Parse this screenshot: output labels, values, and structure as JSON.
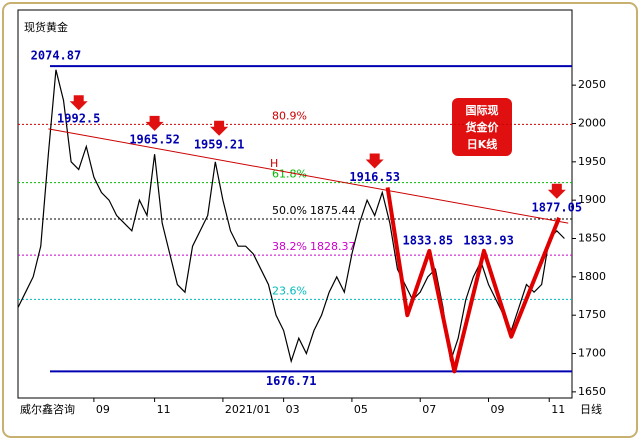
{
  "chart_data": {
    "type": "line",
    "title": "现货黄金",
    "source": "威尔鑫咨询",
    "period_label": "日线",
    "stamp_lines": [
      "国际现",
      "货金价",
      "日K线"
    ],
    "color": "#000000",
    "values": [
      1760,
      1780,
      1800,
      1840,
      1960,
      2070,
      2030,
      1950,
      1940,
      1970,
      1930,
      1910,
      1900,
      1880,
      1870,
      1860,
      1900,
      1880,
      1960,
      1870,
      1830,
      1790,
      1780,
      1840,
      1860,
      1880,
      1950,
      1900,
      1860,
      1840,
      1840,
      1830,
      1810,
      1790,
      1750,
      1730,
      1690,
      1720,
      1700,
      1730,
      1750,
      1780,
      1800,
      1780,
      1830,
      1870,
      1900,
      1880,
      1910,
      1870,
      1810,
      1790,
      1770,
      1780,
      1800,
      1810,
      1760,
      1690,
      1720,
      1770,
      1800,
      1820,
      1790,
      1770,
      1750,
      1730,
      1760,
      1790,
      1780,
      1790,
      1850,
      1860,
      1850
    ],
    "xlim": [
      0,
      73
    ],
    "xticks": [
      {
        "value": 10,
        "label": "09"
      },
      {
        "value": 18,
        "label": "11"
      },
      {
        "value": 27,
        "label": "2021/01"
      },
      {
        "value": 35,
        "label": "03"
      },
      {
        "value": 44,
        "label": "05"
      },
      {
        "value": 53,
        "label": "07"
      },
      {
        "value": 62,
        "label": "09"
      },
      {
        "value": 70,
        "label": "11"
      }
    ],
    "ylim": [
      1642,
      2148
    ],
    "yticks": [
      1650,
      1700,
      1750,
      1800,
      1850,
      1900,
      1950,
      2000,
      2050
    ],
    "levels": [
      {
        "value": 2074.87,
        "color": "#0000b0"
      },
      {
        "value": 1676.71,
        "color": "#0000b0"
      }
    ],
    "fib_levels": [
      {
        "ratio": "80.9%",
        "value": 1998.8,
        "color": "#cc0000",
        "show_value": false
      },
      {
        "ratio": "61.8%",
        "value": 1922.8,
        "color": "#00bb00",
        "show_value": false
      },
      {
        "ratio": "50.0%",
        "value": 1875.44,
        "color": "#000000",
        "show_value": true
      },
      {
        "ratio": "38.2%",
        "value": 1828.37,
        "color": "#cc00cc",
        "show_value": true
      },
      {
        "ratio": "23.6%",
        "value": 1770.7,
        "color": "#00bbbb",
        "show_value": false
      }
    ],
    "peak_labels": [
      {
        "x": 5,
        "value": 2074.87,
        "arrow": false
      },
      {
        "x": 8,
        "value": 1992.5,
        "arrow": true
      },
      {
        "x": 18,
        "value": 1965.52,
        "arrow": true
      },
      {
        "x": 26.5,
        "value": 1959.21,
        "arrow": true
      },
      {
        "x": 47,
        "value": 1916.53,
        "arrow": true
      },
      {
        "x": 71,
        "value": 1877.05,
        "arrow": true
      },
      {
        "x": 54,
        "value": 1833.85,
        "arrow": false
      },
      {
        "x": 62,
        "value": 1833.93,
        "arrow": false
      },
      {
        "x": 36,
        "value": 1676.71,
        "arrow": false
      }
    ],
    "trendline": {
      "label": "H",
      "color": "#cc0000",
      "points": [
        {
          "x": 4,
          "y": 1993
        },
        {
          "x": 72.5,
          "y": 1870
        }
      ]
    },
    "pattern": {
      "color": "#e00000",
      "x": [
        48.7,
        51.3,
        54.2,
        57.5,
        61.4,
        65,
        71.3
      ],
      "values": [
        1916.53,
        1750,
        1833.85,
        1676.71,
        1833.93,
        1722,
        1877.05
      ]
    }
  }
}
